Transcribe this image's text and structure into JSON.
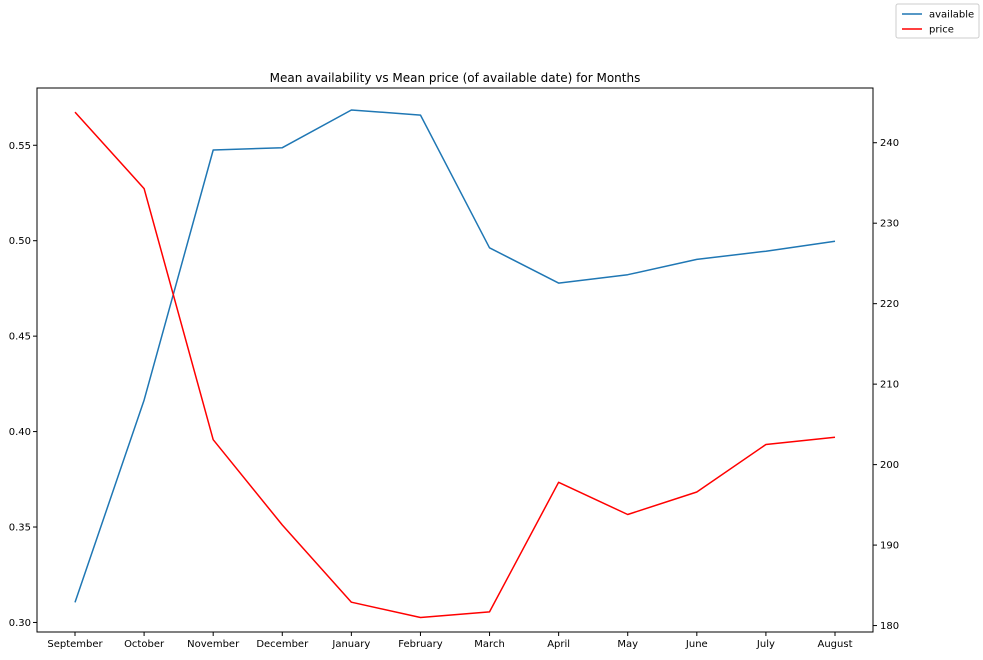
{
  "chart_data": {
    "type": "line",
    "title": "Mean availability vs Mean price (of available date) for Months",
    "xlabel": "",
    "ylabel": "",
    "y2label": "",
    "categories": [
      "September",
      "October",
      "November",
      "December",
      "January",
      "February",
      "March",
      "April",
      "May",
      "June",
      "July",
      "August"
    ],
    "series": [
      {
        "name": "available",
        "axis": "left",
        "color": "#1f77b4",
        "values": [
          0.3105,
          0.4165,
          0.5475,
          0.5487,
          0.5685,
          0.5658,
          0.4963,
          0.4778,
          0.4822,
          0.4902,
          0.4945,
          0.4997
        ]
      },
      {
        "name": "price",
        "axis": "right",
        "color": "#ff0000",
        "values": [
          243.8,
          234.3,
          203.1,
          192.5,
          182.9,
          181.0,
          181.7,
          197.8,
          193.8,
          196.6,
          202.5,
          203.4
        ]
      }
    ],
    "ylim": [
      0.295,
      0.58
    ],
    "y2lim": [
      179.2,
      246.8
    ],
    "yticks": [
      "0.30",
      "0.35",
      "0.40",
      "0.45",
      "0.50",
      "0.55"
    ],
    "y2ticks": [
      "180",
      "190",
      "200",
      "210",
      "220",
      "230",
      "240"
    ],
    "grid": false,
    "legend_position": "top-right"
  }
}
